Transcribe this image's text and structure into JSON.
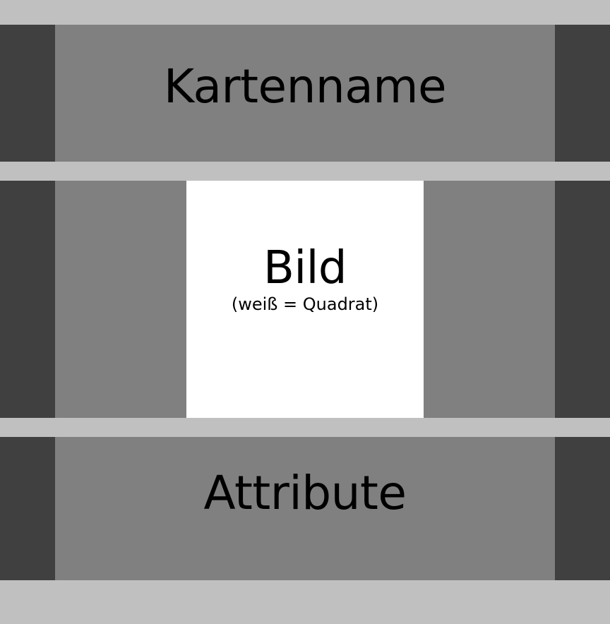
{
  "colors": {
    "background": "#c0c0c0",
    "side_columns": "#404040",
    "section_fill": "#808080",
    "image_area": "#ffffff",
    "text": "#000000"
  },
  "card_name": {
    "label": "Kartenname"
  },
  "image": {
    "label": "Bild",
    "note": "(weiß = Quadrat)"
  },
  "attributes": {
    "label": "Attribute"
  }
}
